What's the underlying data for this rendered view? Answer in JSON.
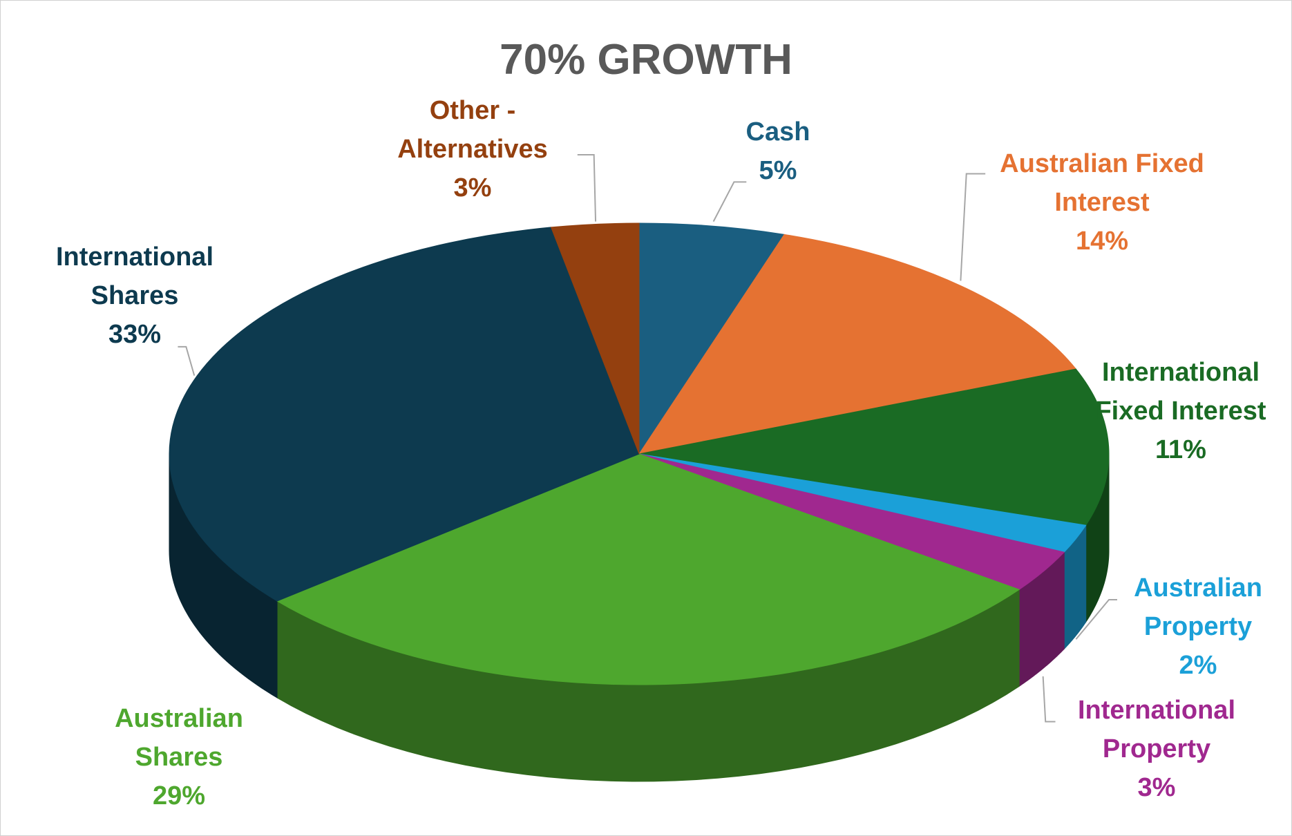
{
  "chart_data": {
    "type": "pie3d",
    "title": "70% GROWTH",
    "categories": [
      "Cash",
      "Australian Fixed Interest",
      "International Fixed Interest",
      "Australian Property",
      "International Property",
      "Australian Shares",
      "International Shares",
      "Other - Alternatives"
    ],
    "values": [
      5,
      14,
      11,
      2,
      3,
      29,
      33,
      3
    ],
    "value_labels": [
      "5%",
      "14%",
      "11%",
      "2%",
      "3%",
      "29%",
      "33%",
      "3%"
    ],
    "colors": [
      "#1a5e80",
      "#e57232",
      "#1a6b24",
      "#1ba0d8",
      "#a0288f",
      "#4ea72e",
      "#0d3a4f",
      "#94400f"
    ]
  }
}
